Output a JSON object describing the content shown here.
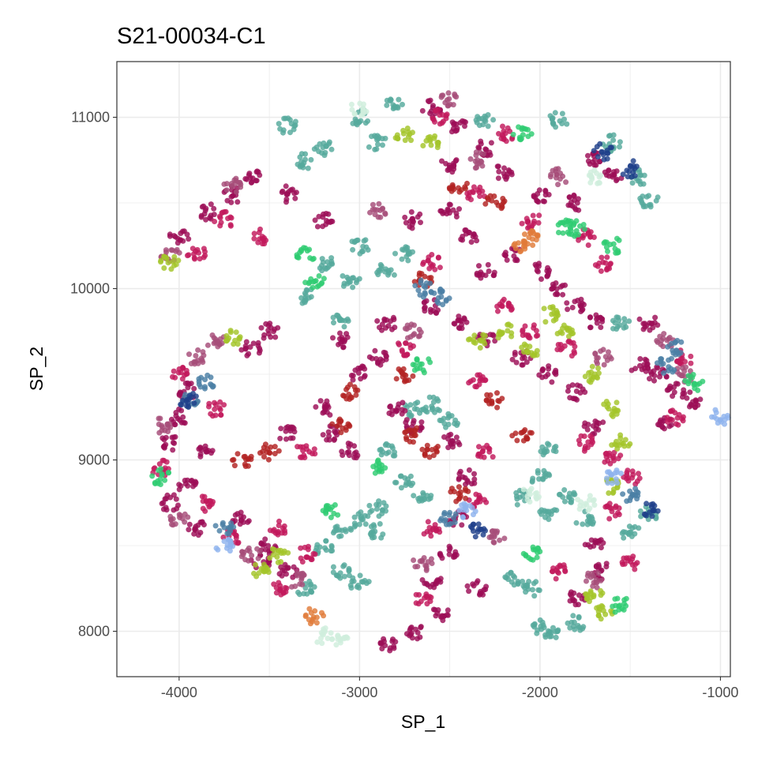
{
  "chart_data": {
    "type": "scatter",
    "title": "S21-00034-C1",
    "xlabel": "SP_1",
    "ylabel": "SP_2",
    "xlim": [
      -4345,
      -945
    ],
    "ylim": [
      7735,
      11325
    ],
    "x_ticks": [
      -4000,
      -3000,
      -2000,
      -1000
    ],
    "y_ticks": [
      8000,
      9000,
      10000,
      11000
    ],
    "x_tick_labels": [
      "-4000",
      "-3000",
      "-2000",
      "-1000"
    ],
    "y_tick_labels": [
      "8000",
      "9000",
      "10000",
      "11000"
    ],
    "grid": true,
    "legend": "none",
    "marker_size": 3.5,
    "colors": {
      "crimson_cells": "#9c0d57",
      "magenta_cells": "#c2185b",
      "rose_cells": "#a64d79",
      "brick_cells": "#b22222",
      "teal_cells": "#55aa9c",
      "lime_cells": "#a3c42a",
      "steel_blue_cells": "#4a7fa5",
      "navy_cells": "#1f3f8a",
      "green_cells": "#2ecc71",
      "light_blue_cells": "#8fb3ee",
      "mint_cells": "#cfeedd",
      "orange_cells": "#e07b39"
    },
    "clusters": [
      {
        "color_key": "teal_cells",
        "points": [
          [
            -3000,
            11000
          ],
          [
            -2800,
            11080
          ],
          [
            -2300,
            10980
          ],
          [
            -3400,
            10950
          ],
          [
            -3300,
            10750
          ],
          [
            -3200,
            10820
          ],
          [
            -2900,
            10850
          ],
          [
            -1900,
            10980
          ],
          [
            -1600,
            10850
          ],
          [
            -1450,
            10650
          ],
          [
            -1400,
            10520
          ],
          [
            -3200,
            10150
          ],
          [
            -3050,
            10050
          ],
          [
            -2750,
            10200
          ],
          [
            -2850,
            10100
          ],
          [
            -3000,
            10250
          ],
          [
            -3300,
            9960
          ],
          [
            -3100,
            9820
          ],
          [
            -1550,
            9790
          ],
          [
            -2600,
            9320
          ],
          [
            -2500,
            9230
          ],
          [
            -2700,
            9300
          ],
          [
            -2850,
            9050
          ],
          [
            -2750,
            8880
          ],
          [
            -2650,
            8800
          ],
          [
            -1950,
            9050
          ],
          [
            -2000,
            8900
          ],
          [
            -1950,
            8700
          ],
          [
            -1850,
            8780
          ],
          [
            -2100,
            8780
          ],
          [
            -2900,
            8720
          ],
          [
            -3000,
            8650
          ],
          [
            -3100,
            8600
          ],
          [
            -3200,
            8480
          ],
          [
            -3100,
            8350
          ],
          [
            -2900,
            8580
          ],
          [
            -3300,
            8250
          ],
          [
            -3000,
            8280
          ],
          [
            -2150,
            8300
          ],
          [
            -2050,
            8250
          ],
          [
            -1750,
            8650
          ],
          [
            -1400,
            8680
          ],
          [
            -1500,
            8580
          ],
          [
            -1800,
            8050
          ],
          [
            -1950,
            7990
          ],
          [
            -2000,
            8020
          ]
        ]
      },
      {
        "color_key": "crimson_cells",
        "points": [
          [
            -2600,
            11050
          ],
          [
            -2450,
            10950
          ],
          [
            -2500,
            10720
          ],
          [
            -2300,
            10820
          ],
          [
            -2200,
            10680
          ],
          [
            -2000,
            10550
          ],
          [
            -1800,
            10500
          ],
          [
            -1700,
            10750
          ],
          [
            -1600,
            10650
          ],
          [
            -3600,
            10650
          ],
          [
            -3700,
            10550
          ],
          [
            -3850,
            10450
          ],
          [
            -4000,
            10300
          ],
          [
            -3400,
            10550
          ],
          [
            -3200,
            10400
          ],
          [
            -2700,
            10400
          ],
          [
            -2500,
            10450
          ],
          [
            -2400,
            10300
          ],
          [
            -2300,
            10100
          ],
          [
            -2150,
            10200
          ],
          [
            -2000,
            10100
          ],
          [
            -1900,
            10000
          ],
          [
            -1800,
            9900
          ],
          [
            -1700,
            9800
          ],
          [
            -2600,
            9900
          ],
          [
            -2450,
            9800
          ],
          [
            -2300,
            9700
          ],
          [
            -2100,
            9600
          ],
          [
            -1950,
            9500
          ],
          [
            -1800,
            9400
          ],
          [
            -1700,
            9200
          ],
          [
            -2850,
            9800
          ],
          [
            -2900,
            9600
          ],
          [
            -3000,
            9500
          ],
          [
            -3100,
            9700
          ],
          [
            -2800,
            9300
          ],
          [
            -2700,
            9200
          ],
          [
            -2500,
            9100
          ],
          [
            -2400,
            8900
          ],
          [
            -2450,
            8650
          ],
          [
            -2500,
            8450
          ],
          [
            -2600,
            8300
          ],
          [
            -2550,
            8100
          ],
          [
            -2700,
            8000
          ],
          [
            -2850,
            7930
          ],
          [
            -2350,
            8250
          ],
          [
            -1350,
            9500
          ],
          [
            -1250,
            9400
          ],
          [
            -1150,
            9350
          ],
          [
            -1300,
            9200
          ],
          [
            -1450,
            9550
          ],
          [
            -1400,
            9800
          ],
          [
            -3950,
            9400
          ],
          [
            -4000,
            9250
          ],
          [
            -4050,
            9100
          ],
          [
            -3850,
            9050
          ],
          [
            -3950,
            8850
          ],
          [
            -4050,
            8750
          ],
          [
            -3900,
            8600
          ],
          [
            -3650,
            8650
          ],
          [
            -3500,
            8500
          ],
          [
            -3400,
            8350
          ],
          [
            -3550,
            8400
          ],
          [
            -3200,
            9300
          ],
          [
            -3150,
            9150
          ],
          [
            -3050,
            9050
          ],
          [
            -3400,
            9150
          ],
          [
            -1700,
            8500
          ],
          [
            -1650,
            8350
          ],
          [
            -1800,
            8200
          ],
          [
            -3500,
            9750
          ],
          [
            -3600,
            9650
          ]
        ]
      },
      {
        "color_key": "magenta_cells",
        "points": [
          [
            -2550,
            11000
          ],
          [
            -2200,
            10900
          ],
          [
            -2350,
            10550
          ],
          [
            -2050,
            10400
          ],
          [
            -1750,
            10300
          ],
          [
            -1650,
            10150
          ],
          [
            -3750,
            10400
          ],
          [
            -3900,
            10200
          ],
          [
            -3550,
            10300
          ],
          [
            -2600,
            10150
          ],
          [
            -2200,
            9900
          ],
          [
            -2050,
            9750
          ],
          [
            -1850,
            9650
          ],
          [
            -1750,
            9100
          ],
          [
            -1600,
            9000
          ],
          [
            -1500,
            8900
          ],
          [
            -1600,
            8700
          ],
          [
            -2750,
            9650
          ],
          [
            -2350,
            9450
          ],
          [
            -2300,
            9050
          ],
          [
            -2350,
            8750
          ],
          [
            -2600,
            8600
          ],
          [
            -2650,
            8200
          ],
          [
            -1200,
            9600
          ],
          [
            -1250,
            9250
          ],
          [
            -4000,
            9500
          ],
          [
            -3800,
            9300
          ],
          [
            -4100,
            8950
          ],
          [
            -3850,
            8750
          ],
          [
            -3700,
            8550
          ],
          [
            -3450,
            8600
          ],
          [
            -3300,
            8450
          ],
          [
            -3450,
            8250
          ],
          [
            -3300,
            9050
          ],
          [
            -1900,
            8350
          ],
          [
            -1500,
            8400
          ]
        ]
      },
      {
        "color_key": "rose_cells",
        "points": [
          [
            -2500,
            11100
          ],
          [
            -2350,
            10750
          ],
          [
            -3700,
            10600
          ],
          [
            -4050,
            10200
          ],
          [
            -1900,
            10650
          ],
          [
            -2900,
            10450
          ],
          [
            -2700,
            9750
          ],
          [
            -1650,
            9600
          ],
          [
            -1300,
            9700
          ],
          [
            -1200,
            9500
          ],
          [
            -3900,
            9600
          ],
          [
            -3800,
            9700
          ],
          [
            -4100,
            9200
          ],
          [
            -4000,
            8650
          ],
          [
            -3600,
            8450
          ],
          [
            -3350,
            8300
          ],
          [
            -2650,
            8400
          ],
          [
            -2250,
            8550
          ],
          [
            -1700,
            8300
          ]
        ]
      },
      {
        "color_key": "brick_cells",
        "points": [
          [
            -2450,
            10600
          ],
          [
            -2250,
            10500
          ],
          [
            -2650,
            10050
          ],
          [
            -2750,
            9500
          ],
          [
            -2600,
            9050
          ],
          [
            -2250,
            9350
          ],
          [
            -2100,
            9150
          ],
          [
            -2450,
            8800
          ],
          [
            -3100,
            9200
          ],
          [
            -3050,
            9400
          ],
          [
            -3650,
            9000
          ],
          [
            -3500,
            9050
          ],
          [
            -2700,
            9150
          ]
        ]
      },
      {
        "color_key": "lime_cells",
        "points": [
          [
            -2200,
            9750
          ],
          [
            -2050,
            9650
          ],
          [
            -1950,
            9850
          ],
          [
            -1850,
            9750
          ],
          [
            -1700,
            9500
          ],
          [
            -1600,
            9300
          ],
          [
            -1550,
            9100
          ],
          [
            -1600,
            8850
          ],
          [
            -2350,
            9700
          ],
          [
            -1700,
            8200
          ],
          [
            -1650,
            8100
          ],
          [
            -3450,
            8450
          ],
          [
            -3550,
            8350
          ],
          [
            -4050,
            10150
          ],
          [
            -3700,
            9720
          ],
          [
            -2750,
            10900
          ],
          [
            -2600,
            10850
          ]
        ]
      },
      {
        "color_key": "steel_blue_cells",
        "points": [
          [
            -1250,
            9650
          ],
          [
            -1300,
            9550
          ],
          [
            -2650,
            10000
          ],
          [
            -2550,
            9950
          ],
          [
            -3850,
            9450
          ],
          [
            -3950,
            9350
          ],
          [
            -2500,
            8650
          ],
          [
            -1500,
            8800
          ],
          [
            -3750,
            8600
          ]
        ]
      },
      {
        "color_key": "navy_cells",
        "points": [
          [
            -1650,
            10800
          ],
          [
            -1500,
            10700
          ],
          [
            -1400,
            8700
          ],
          [
            -2350,
            8600
          ],
          [
            -3950,
            9350
          ]
        ]
      },
      {
        "color_key": "green_cells",
        "points": [
          [
            -2100,
            10900
          ],
          [
            -1850,
            10350
          ],
          [
            -1600,
            10250
          ],
          [
            -3250,
            10050
          ],
          [
            -2650,
            9550
          ],
          [
            -2050,
            8450
          ],
          [
            -1550,
            8150
          ],
          [
            -2900,
            8950
          ],
          [
            -3150,
            8700
          ],
          [
            -1150,
            9450
          ],
          [
            -4100,
            8900
          ],
          [
            -3300,
            10200
          ],
          [
            -1800,
            10350
          ]
        ]
      },
      {
        "color_key": "light_blue_cells",
        "points": [
          [
            -3750,
            8500
          ],
          [
            -1000,
            9250
          ],
          [
            -1600,
            8900
          ],
          [
            -2400,
            8700
          ]
        ]
      },
      {
        "color_key": "mint_cells",
        "points": [
          [
            -3100,
            7950
          ],
          [
            -3200,
            7970
          ],
          [
            -1700,
            10650
          ],
          [
            -2050,
            8800
          ],
          [
            -3000,
            11050
          ],
          [
            -1750,
            8750
          ]
        ]
      },
      {
        "color_key": "orange_cells",
        "points": [
          [
            -3250,
            8090
          ],
          [
            -2050,
            10300
          ],
          [
            -2100,
            10250
          ]
        ]
      }
    ]
  }
}
